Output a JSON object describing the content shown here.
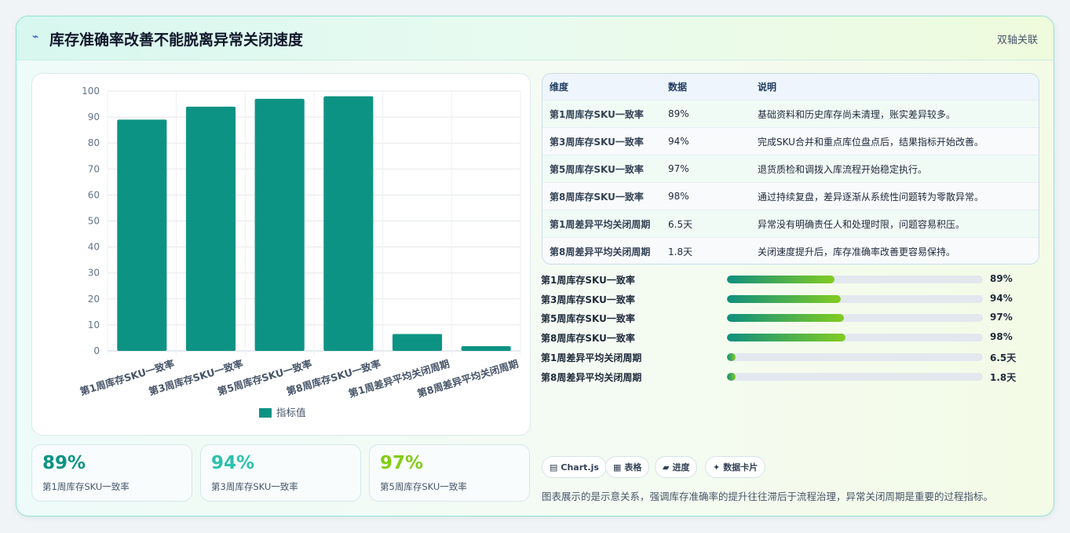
{
  "header": {
    "icon": "⌁",
    "title": "库存准确率改善不能脱离异常关闭速度",
    "badge": "双轴关联"
  },
  "chart_data": {
    "type": "bar",
    "categories": [
      "第1周库存SKU一致率",
      "第3周库存SKU一致率",
      "第5周库存SKU一致率",
      "第8周库存SKU一致率",
      "第1周差异平均关闭周期",
      "第8周差异平均关闭周期"
    ],
    "series": [
      {
        "name": "指标值",
        "values": [
          89,
          94,
          97,
          98,
          6.5,
          1.8
        ]
      }
    ],
    "ylim": [
      0,
      100
    ],
    "yticks": [
      "0",
      "10",
      "20",
      "30",
      "40",
      "50",
      "60",
      "70",
      "80",
      "90",
      "100"
    ],
    "grid": true,
    "legend": "bottom",
    "color": "#0d9384"
  },
  "table": {
    "headers": [
      "维度",
      "数据",
      "说明"
    ],
    "rows": [
      {
        "dim": "第1周库存SKU一致率",
        "value": "89%",
        "desc": "基础资料和历史库存尚未清理，账实差异较多。"
      },
      {
        "dim": "第3周库存SKU一致率",
        "value": "94%",
        "desc": "完成SKU合并和重点库位盘点后，结果指标开始改善。"
      },
      {
        "dim": "第5周库存SKU一致率",
        "value": "97%",
        "desc": "退货质检和调拨入库流程开始稳定执行。"
      },
      {
        "dim": "第8周库存SKU一致率",
        "value": "98%",
        "desc": "通过持续复盘，差异逐渐从系统性问题转为零散异常。"
      },
      {
        "dim": "第1周差异平均关闭周期",
        "value": "6.5天",
        "desc": "异常没有明确责任人和处理时限，问题容易积压。"
      },
      {
        "dim": "第8周差异平均关闭周期",
        "value": "1.8天",
        "desc": "关闭速度提升后，库存准确率改善更容易保持。"
      }
    ]
  },
  "progress": [
    {
      "label": "第1周库存SKU一致率",
      "value": "89%",
      "fraction": 0.42
    },
    {
      "label": "第3周库存SKU一致率",
      "value": "94%",
      "fraction": 0.445
    },
    {
      "label": "第5周库存SKU一致率",
      "value": "97%",
      "fraction": 0.457
    },
    {
      "label": "第8周库存SKU一致率",
      "value": "98%",
      "fraction": 0.462
    },
    {
      "label": "第1周差异平均关闭周期",
      "value": "6.5天",
      "fraction": 0.035
    },
    {
      "label": "第8周差异平均关闭周期",
      "value": "1.8天",
      "fraction": 0.035
    }
  ],
  "kpis": [
    {
      "value": "89%",
      "label": "第1周库存SKU一致率",
      "color": "#0d9384"
    },
    {
      "value": "94%",
      "label": "第3周库存SKU一致率",
      "color": "#2cc1ad"
    },
    {
      "value": "97%",
      "label": "第5周库存SKU一致率",
      "color": "#84cc16"
    }
  ],
  "tags": [
    {
      "icon": "▤",
      "icon_name": "chart-icon",
      "label": "Chart.js"
    },
    {
      "icon": "▦",
      "icon_name": "table-icon",
      "label": "表格"
    },
    {
      "icon": "▰",
      "icon_name": "progress-icon",
      "label": "进度"
    },
    {
      "icon": "✦",
      "icon_name": "card-icon",
      "label": "数据卡片"
    }
  ],
  "note": "图表展示的是示意关系，强调库存准确率的提升往往滞后于流程治理，异常关闭周期是重要的过程指标。"
}
